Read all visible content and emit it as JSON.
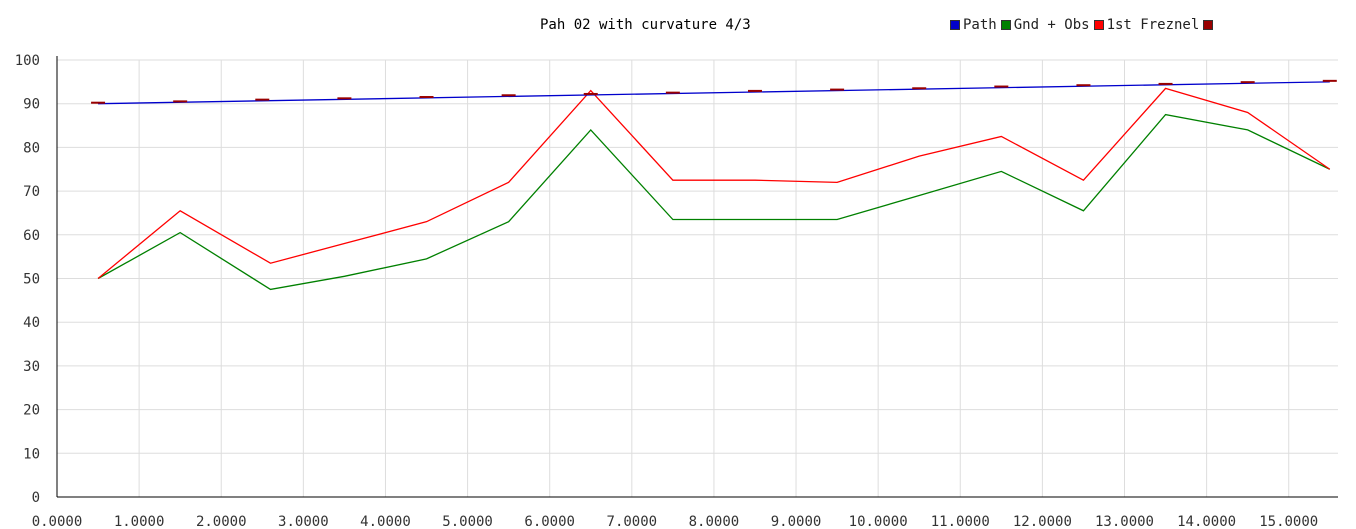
{
  "chart_data": {
    "type": "line",
    "title": "Pah 02 with curvature 4/3",
    "xlabel": "",
    "ylabel": "",
    "ylim": [
      0,
      100
    ],
    "yticks": [
      0,
      10,
      20,
      30,
      40,
      50,
      60,
      70,
      80,
      90,
      100
    ],
    "xticks": [
      "0.0000",
      "1.0000",
      "2.0000",
      "3.0000",
      "4.0000",
      "5.0000",
      "6.0000",
      "7.0000",
      "8.0000",
      "9.0000",
      "10.0000",
      "11.0000",
      "12.0000",
      "13.0000",
      "14.0000",
      "15.0000"
    ],
    "xlim": [
      0,
      15.6
    ],
    "grid": true,
    "legend_position": "top-right",
    "series": [
      {
        "name": "Path",
        "color": "#0000cc",
        "x": [
          0.5,
          15.5
        ],
        "y": [
          90,
          95
        ]
      },
      {
        "name": "Gnd + Obs",
        "color": "#008000",
        "x": [
          0.5,
          1.5,
          2.6,
          3.5,
          4.5,
          5.5,
          6.5,
          7.5,
          8.5,
          9.5,
          10.5,
          11.5,
          12.5,
          13.5,
          14.5,
          15.5
        ],
        "y": [
          50,
          60.5,
          47.5,
          50.5,
          54.5,
          63,
          84,
          63.5,
          63.5,
          63.5,
          69,
          74.5,
          65.5,
          87.5,
          84,
          75
        ]
      },
      {
        "name": "1st Freznel",
        "color": "#ff0000",
        "x": [
          0.5,
          1.5,
          2.6,
          3.5,
          4.5,
          5.5,
          6.5,
          7.5,
          8.5,
          9.5,
          10.5,
          11.5,
          12.5,
          13.5,
          14.5,
          15.5
        ],
        "y": [
          50,
          65.5,
          53.5,
          58,
          63,
          72,
          93,
          72.5,
          72.5,
          72,
          78,
          82.5,
          72.5,
          93.5,
          88,
          75
        ]
      },
      {
        "name": "",
        "color": "#990000",
        "x": [
          0.5,
          1.5,
          2.5,
          3.5,
          4.5,
          5.5,
          6.5,
          7.5,
          8.5,
          9.5,
          10.5,
          11.5,
          12.5,
          13.5,
          14.5,
          15.5
        ],
        "y": [
          90,
          90.3,
          90.7,
          91,
          91.3,
          91.7,
          92,
          92.3,
          92.7,
          93,
          93.3,
          93.7,
          94,
          94.3,
          94.7,
          95
        ]
      }
    ]
  }
}
